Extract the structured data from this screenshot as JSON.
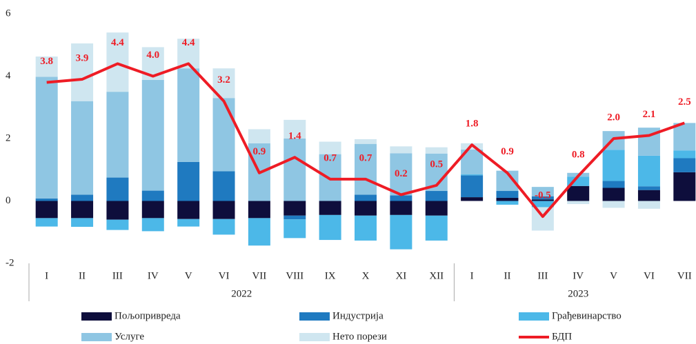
{
  "chart_data": {
    "type": "bar-line",
    "categories": [
      "I",
      "II",
      "III",
      "IV",
      "V",
      "VI",
      "VII",
      "VIII",
      "IX",
      "X",
      "XI",
      "XII",
      "I",
      "II",
      "III",
      "IV",
      "V",
      "VI",
      "VII"
    ],
    "groups": [
      {
        "label": "2022",
        "span": 12
      },
      {
        "label": "2023",
        "span": 7
      }
    ],
    "series": [
      {
        "name": "Пољопривреда",
        "color": "#0e0e3c",
        "values": [
          -0.55,
          -0.55,
          -0.6,
          -0.55,
          -0.58,
          -0.58,
          -0.55,
          -0.47,
          -0.45,
          -0.47,
          -0.45,
          -0.47,
          0.12,
          0.1,
          0.05,
          0.48,
          0.42,
          0.35,
          0.92
        ]
      },
      {
        "name": "Индустрија",
        "color": "#1f7ac0",
        "values": [
          0.08,
          0.2,
          0.75,
          0.33,
          1.25,
          0.95,
          0,
          -0.12,
          0,
          0.2,
          0.18,
          0.32,
          0.7,
          0.22,
          0.1,
          0,
          0.22,
          0.12,
          0.45
        ]
      },
      {
        "name": "Грађевинарство",
        "color": "#4cb8e8",
        "values": [
          -0.27,
          -0.28,
          -0.33,
          -0.42,
          -0.24,
          -0.5,
          -0.88,
          -0.6,
          -0.8,
          -0.8,
          -1.1,
          -0.8,
          0.03,
          -0.12,
          -0.2,
          0.3,
          1.0,
          0.98,
          0.25
        ]
      },
      {
        "name": "Услуге",
        "color": "#8fc6e3",
        "values": [
          3.9,
          3.0,
          2.75,
          3.55,
          3.0,
          2.35,
          1.85,
          2.0,
          1.5,
          1.63,
          1.35,
          1.2,
          0.8,
          0.65,
          0.3,
          0.12,
          0.6,
          0.9,
          0.88
        ]
      },
      {
        "name": "Нето порези",
        "color": "#cfe6f0",
        "values": [
          0.65,
          1.85,
          1.9,
          1.05,
          0.95,
          0.95,
          0.45,
          0.6,
          0.4,
          0.15,
          0.22,
          0.2,
          0.2,
          0,
          -0.75,
          -0.1,
          -0.22,
          -0.25,
          0
        ]
      },
      {
        "name": "БДП",
        "color": "#ee1c25",
        "line": true,
        "values": [
          3.8,
          3.9,
          4.4,
          4.0,
          4.4,
          3.2,
          0.9,
          1.4,
          0.7,
          0.7,
          0.2,
          0.5,
          1.8,
          0.9,
          -0.5,
          0.8,
          2.0,
          2.1,
          2.5
        ],
        "value_labels": [
          "3.8",
          "3.9",
          "4.4",
          "4.0",
          "4.4",
          "3.2",
          "0.9",
          "1.4",
          "0.7",
          "0.7",
          "0.2",
          "0.5",
          "1.8",
          "0.9",
          "-0.5",
          "0.8",
          "2.0",
          "2.1",
          "2.5"
        ]
      }
    ],
    "ylim": [
      -2,
      6
    ],
    "yticks": [
      -2,
      0,
      2,
      4,
      6
    ],
    "grid": false
  }
}
